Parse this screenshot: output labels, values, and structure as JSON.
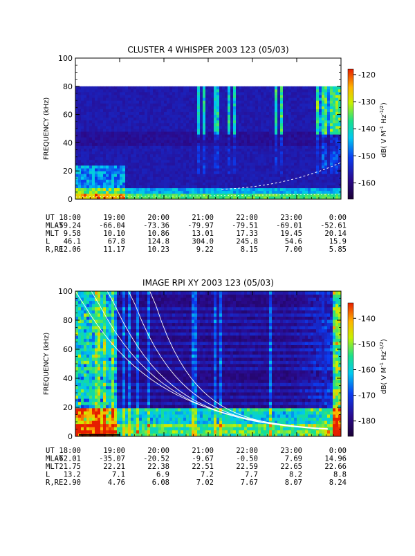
{
  "chart_data": [
    {
      "type": "heatmap",
      "title": "CLUSTER 4 WHISPER 2003 123 (05/03)",
      "ylabel": "FREQUENCY (kHz)",
      "colorbar_label": "dB( V M",
      "colorbar_sup1": "-1",
      "colorbar_mid": " Hz",
      "colorbar_sup2": "-1/2",
      "colorbar_end": ")",
      "ylim": [
        0,
        100
      ],
      "data_ylim": [
        0,
        80
      ],
      "yticks": [
        "0",
        "20",
        "40",
        "60",
        "80",
        "100"
      ],
      "cticks": [
        "-120",
        "-130",
        "-140",
        "-150",
        "-160"
      ],
      "clim": [
        -166,
        -118
      ],
      "x": [
        "18:00",
        "19:00",
        "20:00",
        "21:00",
        "22:00",
        "23:00",
        "0:00"
      ],
      "eph_labels": [
        "UT",
        "MLAT",
        "MLT",
        "L",
        "R,RE"
      ],
      "eph": {
        "MLAT": [
          "-59.24",
          "-66.04",
          "-73.36",
          "-79.97",
          "-79.51",
          "-69.01",
          "-52.61"
        ],
        "MLT": [
          "9.58",
          "10.10",
          "10.86",
          "13.01",
          "17.33",
          "19.45",
          "20.14"
        ],
        "L": [
          "46.1",
          "67.8",
          "124.8",
          "304.0",
          "245.8",
          "54.6",
          "15.9"
        ],
        "R,RE": [
          "12.06",
          "11.17",
          "10.23",
          "9.22",
          "8.15",
          "7.00",
          "5.85"
        ]
      }
    },
    {
      "type": "heatmap",
      "title": "IMAGE RPI XY 2003 123 (05/03)",
      "ylabel": "FREQUENCY (kHz)",
      "colorbar_label": "dB( V M",
      "colorbar_sup1": "-1",
      "colorbar_mid": " Hz",
      "colorbar_sup2": "-1/2",
      "colorbar_end": ")",
      "ylim": [
        0,
        100
      ],
      "data_ylim": [
        0,
        100
      ],
      "yticks": [
        "0",
        "20",
        "40",
        "60",
        "80",
        "100"
      ],
      "cticks": [
        "-140",
        "-150",
        "-160",
        "-170",
        "-180"
      ],
      "clim": [
        -186,
        -134
      ],
      "x": [
        "18:00",
        "19:00",
        "20:00",
        "21:00",
        "22:00",
        "23:00",
        "0:00"
      ],
      "eph_labels": [
        "UT",
        "MLAT",
        "MLT",
        "L",
        "R,RE"
      ],
      "eph": {
        "MLAT": [
          "-62.01",
          "-35.07",
          "-20.52",
          "-9.67",
          "-0.50",
          "7.69",
          "14.96"
        ],
        "MLT": [
          "21.75",
          "22.21",
          "22.38",
          "22.51",
          "22.59",
          "22.65",
          "22.66"
        ],
        "L": [
          "13.2",
          "7.1",
          "6.9",
          "7.2",
          "7.7",
          "8.2",
          "8.8"
        ],
        "R,RE": [
          "2.90",
          "4.76",
          "6.08",
          "7.02",
          "7.67",
          "8.07",
          "8.24"
        ]
      }
    }
  ]
}
